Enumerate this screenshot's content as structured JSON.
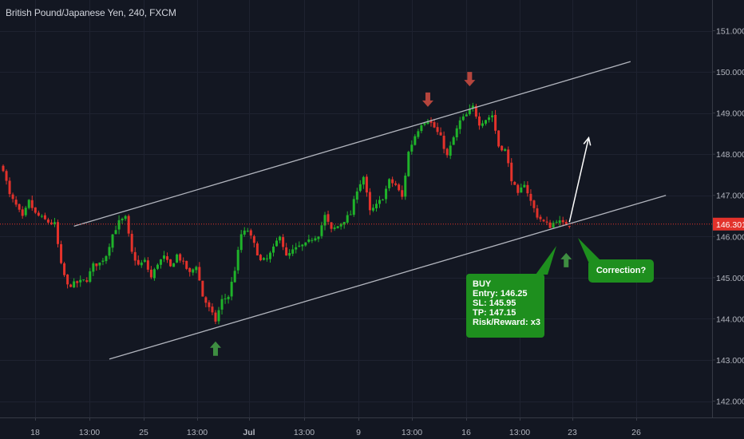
{
  "header": {
    "title": "British Pound/Japanese Yen, 240, FXCM"
  },
  "colors": {
    "background": "#131722",
    "grid": "#1e2230",
    "up_candle": "#26a69a",
    "up_candle_green": "#1fb32a",
    "down_candle": "#e3322b",
    "channel_line": "#b2b5be",
    "price_line": "#e3322b",
    "price_tag": "#e3322b",
    "arrow_down": "#b5453d",
    "arrow_up": "#3e8e41",
    "annotation_bg": "#1e8f1e",
    "axis_text": "#b2b5be"
  },
  "annotations": {
    "buy_box": [
      "BUY",
      "Entry: 146.25",
      "SL: 145.95",
      "TP: 147.15",
      "Risk/Reward: x3"
    ],
    "correction_box": "Correction?"
  },
  "chart_data": {
    "type": "candlestick",
    "title": "British Pound/Japanese Yen, 240, FXCM",
    "symbol": "GBPJPY",
    "timeframe": "240",
    "source": "FXCM",
    "y_axis": {
      "range": [
        141.6,
        151.5
      ],
      "ticks": [
        "151.000",
        "150.000",
        "149.000",
        "148.000",
        "147.000",
        "146.000",
        "145.000",
        "144.000",
        "143.000",
        "142.000"
      ],
      "current_price": "146.301"
    },
    "x_axis": {
      "tick_labels": [
        "18",
        "13:00",
        "25",
        "13:00",
        "Jul",
        "13:00",
        "9",
        "13:00",
        "16",
        "13:00",
        "23",
        "26"
      ]
    },
    "channel": {
      "upper_line": [
        {
          "bar": 22,
          "price": 146.25
        },
        {
          "bar": 195,
          "price": 150.25
        }
      ],
      "lower_line": [
        {
          "bar": 33,
          "price": 143.02
        },
        {
          "bar": 206,
          "price": 147.0
        }
      ]
    },
    "projection_arrow": [
      {
        "bar": 176,
        "price": 146.35
      },
      {
        "bar": 182,
        "price": 148.4
      }
    ],
    "markers": {
      "down_arrows": [
        {
          "bar": 132,
          "price": 149.15
        },
        {
          "bar": 145,
          "price": 149.65
        }
      ],
      "up_arrows": [
        {
          "bar": 66,
          "price": 143.45
        },
        {
          "bar": 175,
          "price": 145.6
        }
      ]
    },
    "close_path": [
      [
        0,
        147.65
      ],
      [
        2,
        147.0
      ],
      [
        4,
        146.75
      ],
      [
        6,
        146.45
      ],
      [
        8,
        146.85
      ],
      [
        10,
        146.55
      ],
      [
        12,
        146.45
      ],
      [
        14,
        146.35
      ],
      [
        16,
        146.3
      ],
      [
        18,
        145.3
      ],
      [
        20,
        144.8
      ],
      [
        22,
        144.85
      ],
      [
        24,
        144.9
      ],
      [
        26,
        144.95
      ],
      [
        28,
        145.3
      ],
      [
        30,
        145.35
      ],
      [
        32,
        145.55
      ],
      [
        34,
        146.05
      ],
      [
        36,
        146.35
      ],
      [
        38,
        146.45
      ],
      [
        40,
        145.6
      ],
      [
        42,
        145.3
      ],
      [
        44,
        145.4
      ],
      [
        46,
        145.0
      ],
      [
        48,
        145.35
      ],
      [
        50,
        145.5
      ],
      [
        52,
        145.25
      ],
      [
        54,
        145.55
      ],
      [
        56,
        145.35
      ],
      [
        58,
        145.1
      ],
      [
        60,
        145.3
      ],
      [
        62,
        144.55
      ],
      [
        64,
        144.25
      ],
      [
        66,
        143.95
      ],
      [
        68,
        144.45
      ],
      [
        70,
        144.55
      ],
      [
        72,
        145.2
      ],
      [
        74,
        146.05
      ],
      [
        76,
        146.15
      ],
      [
        78,
        145.8
      ],
      [
        80,
        145.4
      ],
      [
        82,
        145.45
      ],
      [
        84,
        145.7
      ],
      [
        86,
        146.05
      ],
      [
        88,
        145.5
      ],
      [
        90,
        145.65
      ],
      [
        92,
        145.75
      ],
      [
        94,
        145.8
      ],
      [
        96,
        145.95
      ],
      [
        98,
        146.05
      ],
      [
        100,
        146.5
      ],
      [
        102,
        146.15
      ],
      [
        104,
        146.25
      ],
      [
        106,
        146.4
      ],
      [
        108,
        146.55
      ],
      [
        110,
        147.15
      ],
      [
        112,
        147.45
      ],
      [
        114,
        146.6
      ],
      [
        116,
        146.75
      ],
      [
        118,
        146.95
      ],
      [
        120,
        147.35
      ],
      [
        122,
        147.25
      ],
      [
        124,
        146.95
      ],
      [
        126,
        148.05
      ],
      [
        128,
        148.45
      ],
      [
        130,
        148.75
      ],
      [
        132,
        148.85
      ],
      [
        134,
        148.65
      ],
      [
        136,
        148.4
      ],
      [
        138,
        147.95
      ],
      [
        140,
        148.4
      ],
      [
        142,
        148.8
      ],
      [
        144,
        148.95
      ],
      [
        146,
        149.15
      ],
      [
        148,
        148.75
      ],
      [
        150,
        148.85
      ],
      [
        152,
        148.95
      ],
      [
        154,
        148.2
      ],
      [
        156,
        148.1
      ],
      [
        158,
        147.4
      ],
      [
        160,
        147.0
      ],
      [
        162,
        147.3
      ],
      [
        164,
        146.85
      ],
      [
        166,
        146.5
      ],
      [
        168,
        146.35
      ],
      [
        170,
        146.25
      ],
      [
        172,
        146.4
      ],
      [
        174,
        146.3
      ],
      [
        176,
        146.3
      ]
    ]
  }
}
